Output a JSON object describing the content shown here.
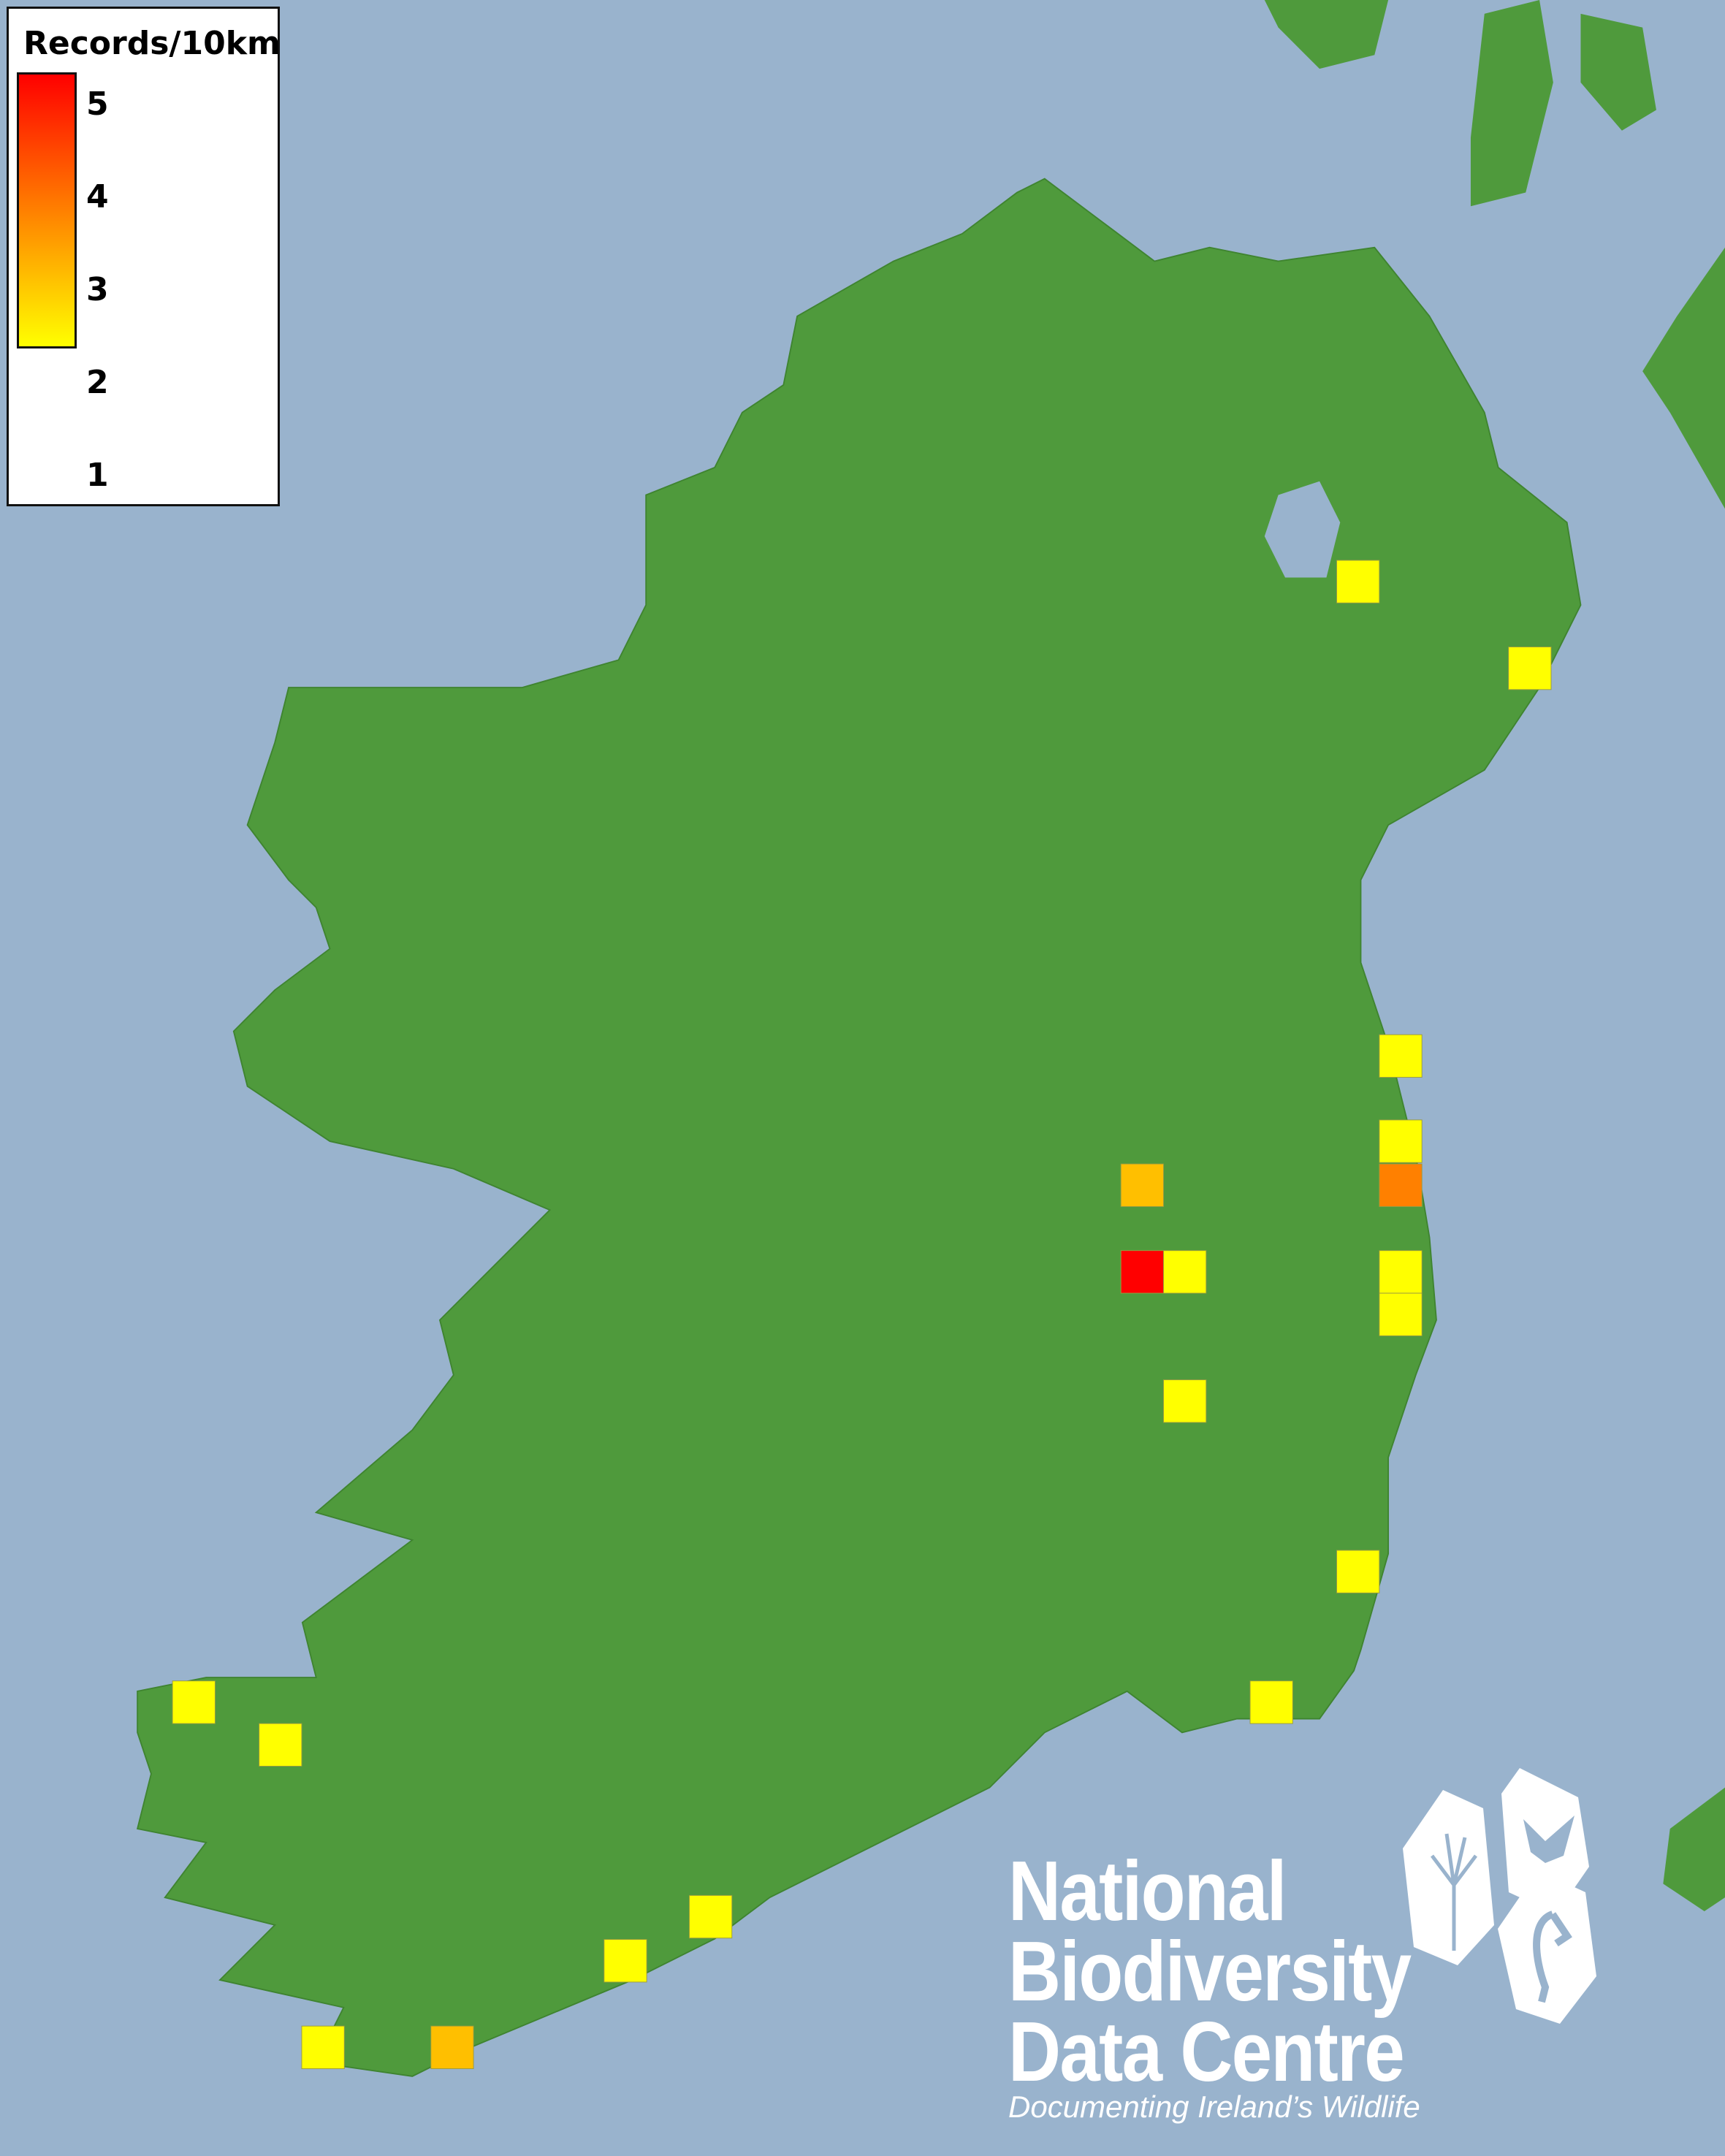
{
  "legend": {
    "title": "Records/10km",
    "ticks": [
      "5",
      "4",
      "3",
      "2",
      "1"
    ],
    "scale_min": 1,
    "scale_max": 5,
    "color_low": "#ffff00",
    "color_mid": "#ff8000",
    "color_high": "#ff0000"
  },
  "map": {
    "sea_color": "#99b3cd",
    "land_color": "#4f9a3c",
    "records": [
      1,
      1,
      1,
      1,
      3,
      2,
      5,
      1,
      1,
      1,
      1,
      1,
      1,
      1,
      1,
      1,
      1,
      1,
      2
    ]
  },
  "logo": {
    "line1": "National",
    "line2": "Biodiversity",
    "line3": "Data Centre",
    "tagline": "Documenting Ireland’s Wildlife",
    "icons": [
      "tree-icon",
      "butterfly-icon",
      "seahorse-icon"
    ]
  }
}
